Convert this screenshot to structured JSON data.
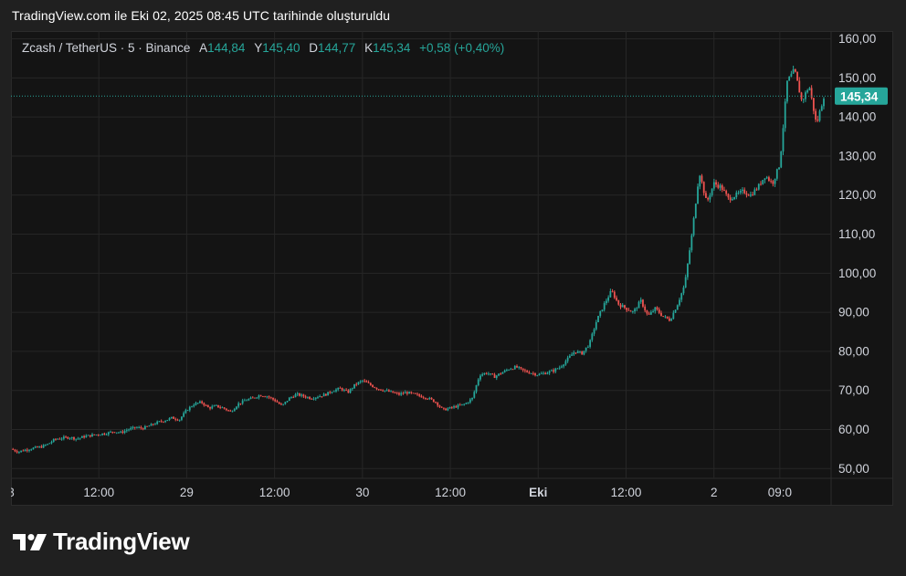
{
  "header": {
    "title": "TradingView.com ile Eki 02, 2025 08:45 UTC tarihinde oluşturuldu"
  },
  "legend": {
    "symbol": "Zcash / TetherUS · 5 · Binance",
    "open_label": "A",
    "open_value": "144,84",
    "high_label": "Y",
    "high_value": "145,40",
    "low_label": "D",
    "low_value": "144,77",
    "close_label": "K",
    "close_value": "145,34",
    "change": "+0,58 (+0,40%)"
  },
  "price_tag": "145,34",
  "brand": {
    "name": "TradingView"
  },
  "colors": {
    "up": "#26a69a",
    "down": "#ef5350",
    "background": "#141414",
    "grid": "#262626"
  },
  "chart_data": {
    "type": "candlestick",
    "title": "Zcash / TetherUS · 5 · Binance",
    "y_ticks": [
      "50,00",
      "60,00",
      "70,00",
      "80,00",
      "90,00",
      "100,00",
      "110,00",
      "120,00",
      "130,00",
      "140,00",
      "150,00",
      "160,00"
    ],
    "ylim": [
      47.5,
      162.0
    ],
    "x_ticks": [
      {
        "label": "8",
        "t": 0
      },
      {
        "label": "12:00",
        "t": 12
      },
      {
        "label": "29",
        "t": 24
      },
      {
        "label": "12:00",
        "t": 36
      },
      {
        "label": "30",
        "t": 48
      },
      {
        "label": "12:00",
        "t": 60
      },
      {
        "label": "Eki",
        "t": 72
      },
      {
        "label": "12:00",
        "t": 84
      },
      {
        "label": "2",
        "t": 96
      },
      {
        "label": "09:0",
        "t": 105
      }
    ],
    "xlim": [
      0,
      112
    ],
    "current_price": 145.34,
    "price_path": [
      [
        0,
        55
      ],
      [
        1,
        54.3
      ],
      [
        2,
        54.8
      ],
      [
        3,
        55.2
      ],
      [
        4,
        55.5
      ],
      [
        5,
        56.2
      ],
      [
        6,
        57.5
      ],
      [
        7,
        57.8
      ],
      [
        8,
        58
      ],
      [
        9,
        57.6
      ],
      [
        10,
        58.2
      ],
      [
        11,
        58.5
      ],
      [
        12,
        58.8
      ],
      [
        13,
        59
      ],
      [
        14,
        59.5
      ],
      [
        15,
        59.2
      ],
      [
        16,
        60
      ],
      [
        17,
        60.5
      ],
      [
        18,
        60.3
      ],
      [
        19,
        61
      ],
      [
        20,
        61.8
      ],
      [
        21,
        62.3
      ],
      [
        22,
        63
      ],
      [
        23,
        62.5
      ],
      [
        24,
        65
      ],
      [
        25,
        66.5
      ],
      [
        26,
        67
      ],
      [
        27,
        65.5
      ],
      [
        28,
        66
      ],
      [
        29,
        65.5
      ],
      [
        30,
        64.5
      ],
      [
        31,
        66.5
      ],
      [
        32,
        67.5
      ],
      [
        33,
        68
      ],
      [
        34,
        68.8
      ],
      [
        35,
        68.5
      ],
      [
        36,
        67.5
      ],
      [
        37,
        66
      ],
      [
        38,
        68
      ],
      [
        39,
        69
      ],
      [
        40,
        68.5
      ],
      [
        41,
        68
      ],
      [
        42,
        68.5
      ],
      [
        43,
        69
      ],
      [
        44,
        70
      ],
      [
        45,
        70.5
      ],
      [
        46,
        69.5
      ],
      [
        47,
        71.5
      ],
      [
        48,
        72.5
      ],
      [
        49,
        71.5
      ],
      [
        50,
        70.5
      ],
      [
        51,
        70
      ],
      [
        52,
        69.5
      ],
      [
        53,
        69
      ],
      [
        54,
        69.5
      ],
      [
        55,
        69
      ],
      [
        56,
        68.5
      ],
      [
        57,
        68
      ],
      [
        58,
        67
      ],
      [
        59,
        65
      ],
      [
        60,
        65.5
      ],
      [
        61,
        66
      ],
      [
        62,
        66.5
      ],
      [
        63,
        68
      ],
      [
        64,
        74
      ],
      [
        65,
        74.5
      ],
      [
        66,
        73.5
      ],
      [
        67,
        74.5
      ],
      [
        68,
        75.5
      ],
      [
        69,
        76
      ],
      [
        70,
        75
      ],
      [
        71,
        74.5
      ],
      [
        72,
        74
      ],
      [
        73,
        74.5
      ],
      [
        74,
        75
      ],
      [
        75,
        76
      ],
      [
        76,
        78
      ],
      [
        77,
        80
      ],
      [
        78,
        79.5
      ],
      [
        79,
        82
      ],
      [
        80,
        88
      ],
      [
        81,
        92
      ],
      [
        82,
        95.5
      ],
      [
        83,
        92
      ],
      [
        84,
        91
      ],
      [
        85,
        90
      ],
      [
        86,
        93
      ],
      [
        87,
        89
      ],
      [
        88,
        91
      ],
      [
        89,
        89
      ],
      [
        90,
        88
      ],
      [
        91,
        92
      ],
      [
        92,
        97
      ],
      [
        93,
        110
      ],
      [
        94,
        126
      ],
      [
        95,
        118
      ],
      [
        96,
        123
      ],
      [
        97,
        122
      ],
      [
        98,
        119
      ],
      [
        99,
        120
      ],
      [
        100,
        121
      ],
      [
        101,
        120
      ],
      [
        102,
        122
      ],
      [
        103,
        125
      ],
      [
        104,
        123
      ],
      [
        105,
        128
      ],
      [
        106,
        149
      ],
      [
        107,
        152
      ],
      [
        108,
        144
      ],
      [
        109,
        148
      ],
      [
        110,
        138
      ],
      [
        111,
        145.34
      ]
    ]
  }
}
